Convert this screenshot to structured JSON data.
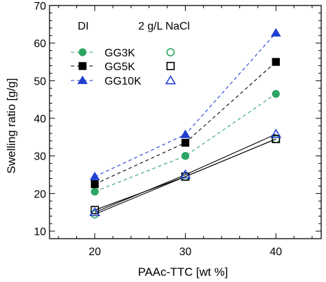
{
  "chart_data": {
    "type": "line",
    "xlabel": "PAAc-TTC [wt  %]",
    "ylabel": "Swelling ratio [g/g]",
    "xlim": [
      15,
      45
    ],
    "ylim": [
      8,
      70
    ],
    "x_ticks": [
      20,
      30,
      40
    ],
    "y_ticks": [
      10,
      20,
      30,
      40,
      50,
      60,
      70
    ],
    "grid": false,
    "legend_position": "top-left",
    "legend_headers": {
      "left": "DI",
      "right": "2 g/L NaCl"
    },
    "x": [
      20,
      30,
      40
    ],
    "series": [
      {
        "name": "GG3K",
        "condition": "DI",
        "values": [
          20.5,
          30.0,
          46.5
        ],
        "marker": "circle",
        "filled": true,
        "color": "#2ca565",
        "line": "dashed",
        "line_color": "#2ca565"
      },
      {
        "name": "GG5K",
        "condition": "DI",
        "values": [
          22.5,
          33.5,
          55.0
        ],
        "marker": "square",
        "filled": true,
        "color": "#000000",
        "line": "dashed",
        "line_color": "#000000"
      },
      {
        "name": "GG10K",
        "condition": "DI",
        "values": [
          24.5,
          35.7,
          62.7
        ],
        "marker": "triangle",
        "filled": true,
        "color": "#1f3fcf",
        "line": "dashed",
        "line_color": "#1f3fcf"
      },
      {
        "name": "GG3K",
        "condition": "2 g/L NaCl",
        "values": [
          14.5,
          24.5,
          34.5
        ],
        "marker": "circle",
        "filled": false,
        "color": "#2ca565",
        "line": "solid",
        "line_color": "#000000"
      },
      {
        "name": "GG5K",
        "condition": "2 g/L NaCl",
        "values": [
          15.6,
          24.5,
          34.5
        ],
        "marker": "square",
        "filled": false,
        "color": "#000000",
        "line": "solid",
        "line_color": "#000000"
      },
      {
        "name": "GG10K",
        "condition": "2 g/L NaCl",
        "values": [
          15.0,
          25.0,
          35.8
        ],
        "marker": "triangle",
        "filled": false,
        "color": "#1f3fcf",
        "line": "solid",
        "line_color": "#000000"
      }
    ]
  }
}
